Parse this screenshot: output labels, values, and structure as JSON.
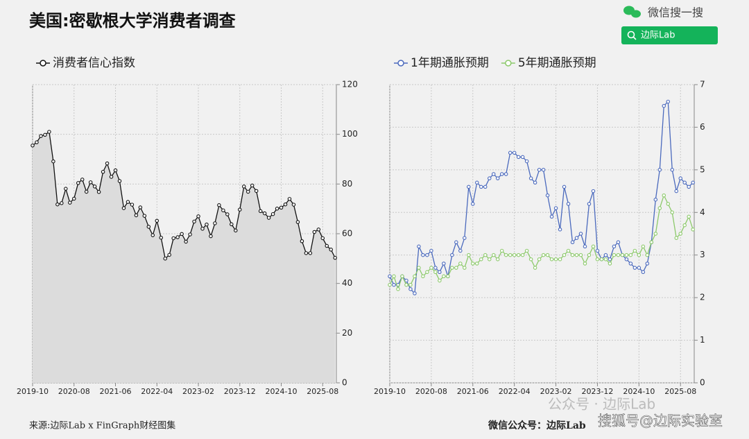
{
  "header": {
    "title": "美国:密歇根大学消费者调查",
    "brand": "微信搜一搜",
    "search": "边际Lab"
  },
  "footer": {
    "source": "来源:边际Lab x FinGraph财经图集",
    "account": "微信公众号：边际Lab",
    "watermark": "公众号 · 边际Lab",
    "sohu": "搜狐号@边际实验室"
  },
  "chart_data": [
    {
      "type": "line",
      "area": true,
      "grid": true,
      "x": [
        "2019-10",
        "2019-11",
        "2019-12",
        "2020-01",
        "2020-02",
        "2020-03",
        "2020-04",
        "2020-05",
        "2020-06",
        "2020-07",
        "2020-08",
        "2020-09",
        "2020-10",
        "2020-11",
        "2020-12",
        "2021-01",
        "2021-02",
        "2021-03",
        "2021-04",
        "2021-05",
        "2021-06",
        "2021-07",
        "2021-08",
        "2021-09",
        "2021-10",
        "2021-11",
        "2021-12",
        "2022-01",
        "2022-02",
        "2022-03",
        "2022-04",
        "2022-05",
        "2022-06",
        "2022-07",
        "2022-08",
        "2022-09",
        "2022-10",
        "2022-11",
        "2022-12",
        "2023-01",
        "2023-02",
        "2023-03",
        "2023-04",
        "2023-05",
        "2023-06",
        "2023-07",
        "2023-08",
        "2023-09",
        "2023-10",
        "2023-11",
        "2023-12",
        "2024-01",
        "2024-02",
        "2024-03",
        "2024-04",
        "2024-05",
        "2024-06",
        "2024-07",
        "2024-08",
        "2024-09",
        "2024-10",
        "2024-11",
        "2024-12",
        "2025-01",
        "2025-02",
        "2025-03",
        "2025-04",
        "2025-05",
        "2025-06",
        "2025-07",
        "2025-08",
        "2025-09",
        "2025-10",
        "2025-11"
      ],
      "xticks": [
        "2019-10",
        "2020-08",
        "2021-06",
        "2022-04",
        "2023-02",
        "2023-12",
        "2024-10",
        "2025-08"
      ],
      "ylim": [
        0,
        120
      ],
      "yticks": [
        0,
        20,
        40,
        60,
        80,
        100,
        120
      ],
      "series": [
        {
          "name": "消费者信心指数",
          "color": "#111111",
          "values": [
            95.5,
            96.8,
            99.3,
            99.8,
            101.0,
            89.1,
            71.8,
            72.3,
            78.1,
            72.5,
            74.1,
            80.4,
            81.8,
            76.9,
            80.7,
            79.0,
            76.8,
            84.9,
            88.3,
            82.9,
            85.5,
            81.2,
            70.3,
            72.8,
            71.7,
            67.4,
            70.6,
            67.2,
            62.8,
            59.4,
            65.2,
            58.4,
            50.0,
            51.5,
            58.2,
            58.6,
            59.9,
            56.8,
            59.7,
            64.9,
            67.0,
            62.0,
            63.7,
            59.0,
            64.2,
            71.5,
            69.4,
            67.8,
            63.8,
            61.3,
            69.7,
            79.0,
            76.9,
            79.4,
            77.2,
            69.1,
            68.2,
            66.4,
            67.9,
            70.1,
            70.5,
            71.8,
            74.0,
            71.7,
            64.7,
            57.0,
            52.2,
            52.2,
            60.7,
            61.7,
            58.2,
            55.1,
            53.6,
            50.3
          ]
        }
      ]
    },
    {
      "type": "line",
      "area": false,
      "grid": true,
      "x": [
        "2019-10",
        "2019-11",
        "2019-12",
        "2020-01",
        "2020-02",
        "2020-03",
        "2020-04",
        "2020-05",
        "2020-06",
        "2020-07",
        "2020-08",
        "2020-09",
        "2020-10",
        "2020-11",
        "2020-12",
        "2021-01",
        "2021-02",
        "2021-03",
        "2021-04",
        "2021-05",
        "2021-06",
        "2021-07",
        "2021-08",
        "2021-09",
        "2021-10",
        "2021-11",
        "2021-12",
        "2022-01",
        "2022-02",
        "2022-03",
        "2022-04",
        "2022-05",
        "2022-06",
        "2022-07",
        "2022-08",
        "2022-09",
        "2022-10",
        "2022-11",
        "2022-12",
        "2023-01",
        "2023-02",
        "2023-03",
        "2023-04",
        "2023-05",
        "2023-06",
        "2023-07",
        "2023-08",
        "2023-09",
        "2023-10",
        "2023-11",
        "2023-12",
        "2024-01",
        "2024-02",
        "2024-03",
        "2024-04",
        "2024-05",
        "2024-06",
        "2024-07",
        "2024-08",
        "2024-09",
        "2024-10",
        "2024-11",
        "2024-12",
        "2025-01",
        "2025-02",
        "2025-03",
        "2025-04",
        "2025-05",
        "2025-06",
        "2025-07",
        "2025-08",
        "2025-09",
        "2025-10",
        "2025-11"
      ],
      "xticks": [
        "2019-10",
        "2020-08",
        "2021-06",
        "2022-04",
        "2023-02",
        "2023-12",
        "2024-10",
        "2025-08"
      ],
      "ylim": [
        0,
        7
      ],
      "yticks": [
        0,
        1,
        2,
        3,
        4,
        5,
        6,
        7
      ],
      "series": [
        {
          "name": "1年期通胀预期",
          "color": "#4a69bd",
          "values": [
            2.5,
            2.3,
            2.3,
            2.5,
            2.4,
            2.2,
            2.1,
            3.2,
            3.0,
            3.0,
            3.1,
            2.7,
            2.6,
            2.8,
            2.5,
            3.0,
            3.3,
            3.1,
            3.4,
            4.6,
            4.2,
            4.7,
            4.6,
            4.6,
            4.8,
            4.9,
            4.8,
            4.9,
            4.9,
            5.4,
            5.4,
            5.3,
            5.3,
            5.2,
            4.8,
            4.7,
            5.0,
            5.0,
            4.4,
            3.9,
            4.1,
            3.6,
            4.6,
            4.2,
            3.3,
            3.4,
            3.5,
            3.2,
            4.2,
            4.5,
            3.1,
            2.9,
            3.0,
            2.9,
            3.2,
            3.3,
            3.0,
            2.9,
            2.8,
            2.7,
            2.7,
            2.6,
            2.8,
            3.3,
            4.3,
            5.0,
            6.5,
            6.6,
            5.0,
            4.5,
            4.8,
            4.7,
            4.6,
            4.7
          ]
        },
        {
          "name": "5年期通胀预期",
          "color": "#8cc96a",
          "values": [
            2.3,
            2.5,
            2.2,
            2.5,
            2.3,
            2.3,
            2.5,
            2.7,
            2.5,
            2.6,
            2.7,
            2.6,
            2.4,
            2.5,
            2.5,
            2.7,
            2.7,
            2.8,
            2.7,
            3.0,
            2.8,
            2.8,
            2.9,
            3.0,
            2.9,
            3.0,
            2.9,
            3.1,
            3.0,
            3.0,
            3.0,
            3.0,
            3.0,
            3.1,
            2.9,
            2.7,
            2.9,
            3.0,
            3.0,
            2.9,
            2.9,
            2.9,
            3.0,
            3.1,
            3.0,
            3.0,
            3.0,
            2.8,
            3.0,
            3.2,
            2.9,
            2.9,
            2.9,
            2.8,
            3.0,
            3.0,
            3.0,
            3.0,
            3.0,
            3.1,
            3.0,
            3.2,
            3.0,
            3.3,
            3.5,
            4.1,
            4.4,
            4.2,
            4.0,
            3.4,
            3.5,
            3.7,
            3.9,
            3.6
          ]
        }
      ]
    }
  ]
}
